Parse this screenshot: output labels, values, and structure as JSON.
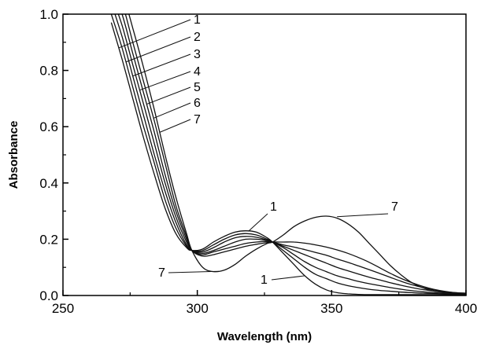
{
  "chart_data": {
    "type": "line",
    "xlabel": "Wavelength (nm)",
    "ylabel": "Absorbance",
    "xlim": [
      250,
      400
    ],
    "ylim": [
      0.0,
      1.0
    ],
    "xticks": [
      250,
      300,
      350,
      400
    ],
    "yticks": [
      0.0,
      0.2,
      0.4,
      0.6,
      0.8,
      1.0
    ],
    "xtick_labels": [
      "250",
      "300",
      "350",
      "400"
    ],
    "ytick_labels": [
      "0.0",
      "0.2",
      "0.4",
      "0.6",
      "0.8",
      "1.0"
    ],
    "grid": false,
    "legend": "none",
    "x": [
      268,
      272,
      276,
      280,
      284,
      288,
      292,
      296,
      298,
      302,
      306,
      310,
      314,
      318,
      322,
      326,
      328,
      332,
      336,
      340,
      344,
      348,
      352,
      356,
      360,
      364,
      368,
      372,
      376,
      380,
      384,
      388,
      392,
      396,
      400
    ],
    "series": [
      {
        "name": "1",
        "values": [
          0.97,
          0.84,
          0.7,
          0.56,
          0.43,
          0.31,
          0.22,
          0.17,
          0.16,
          0.165,
          0.19,
          0.21,
          0.225,
          0.23,
          0.225,
          0.205,
          0.19,
          0.15,
          0.11,
          0.07,
          0.04,
          0.02,
          0.01,
          0.006,
          0.004,
          0.003,
          0.003,
          0.003,
          0.003,
          0.003,
          0.003,
          0.003,
          0.003,
          0.003,
          0.003
        ]
      },
      {
        "name": "2",
        "values": [
          1.0,
          0.88,
          0.74,
          0.6,
          0.47,
          0.34,
          0.24,
          0.175,
          0.16,
          0.16,
          0.18,
          0.2,
          0.215,
          0.22,
          0.215,
          0.2,
          0.19,
          0.16,
          0.13,
          0.1,
          0.075,
          0.06,
          0.045,
          0.035,
          0.028,
          0.022,
          0.018,
          0.015,
          0.012,
          0.01,
          0.008,
          0.007,
          0.006,
          0.005,
          0.004
        ]
      },
      {
        "name": "3",
        "values": [
          1.04,
          0.92,
          0.78,
          0.64,
          0.5,
          0.37,
          0.26,
          0.18,
          0.16,
          0.155,
          0.17,
          0.19,
          0.205,
          0.21,
          0.207,
          0.197,
          0.19,
          0.17,
          0.145,
          0.12,
          0.1,
          0.085,
          0.07,
          0.06,
          0.05,
          0.042,
          0.035,
          0.028,
          0.022,
          0.017,
          0.013,
          0.01,
          0.008,
          0.006,
          0.005
        ]
      },
      {
        "name": "4",
        "values": [
          1.07,
          0.96,
          0.82,
          0.68,
          0.54,
          0.4,
          0.28,
          0.19,
          0.16,
          0.15,
          0.16,
          0.175,
          0.19,
          0.2,
          0.2,
          0.195,
          0.19,
          0.175,
          0.16,
          0.145,
          0.13,
          0.115,
          0.1,
          0.088,
          0.076,
          0.065,
          0.055,
          0.045,
          0.036,
          0.028,
          0.021,
          0.016,
          0.012,
          0.009,
          0.007
        ]
      },
      {
        "name": "5",
        "values": [
          1.1,
          1.0,
          0.86,
          0.72,
          0.58,
          0.43,
          0.3,
          0.2,
          0.16,
          0.145,
          0.155,
          0.165,
          0.175,
          0.185,
          0.19,
          0.192,
          0.19,
          0.18,
          0.172,
          0.163,
          0.153,
          0.143,
          0.13,
          0.118,
          0.105,
          0.092,
          0.078,
          0.064,
          0.05,
          0.038,
          0.028,
          0.02,
          0.014,
          0.01,
          0.008
        ]
      },
      {
        "name": "6",
        "values": [
          1.12,
          1.04,
          0.9,
          0.76,
          0.62,
          0.47,
          0.32,
          0.21,
          0.16,
          0.14,
          0.145,
          0.155,
          0.165,
          0.175,
          0.182,
          0.188,
          0.19,
          0.19,
          0.19,
          0.186,
          0.18,
          0.172,
          0.162,
          0.15,
          0.135,
          0.118,
          0.098,
          0.078,
          0.06,
          0.045,
          0.032,
          0.022,
          0.015,
          0.01,
          0.008
        ]
      },
      {
        "name": "7",
        "values": [
          1.15,
          1.08,
          0.95,
          0.81,
          0.66,
          0.5,
          0.35,
          0.22,
          0.16,
          0.1,
          0.085,
          0.09,
          0.11,
          0.14,
          0.165,
          0.185,
          0.19,
          0.215,
          0.245,
          0.265,
          0.278,
          0.282,
          0.275,
          0.255,
          0.225,
          0.185,
          0.145,
          0.105,
          0.072,
          0.045,
          0.027,
          0.016,
          0.011,
          0.008,
          0.007
        ]
      }
    ],
    "annotations": [
      "1",
      "2",
      "3",
      "4",
      "5",
      "6",
      "7",
      "1",
      "7",
      "7",
      "1"
    ]
  }
}
